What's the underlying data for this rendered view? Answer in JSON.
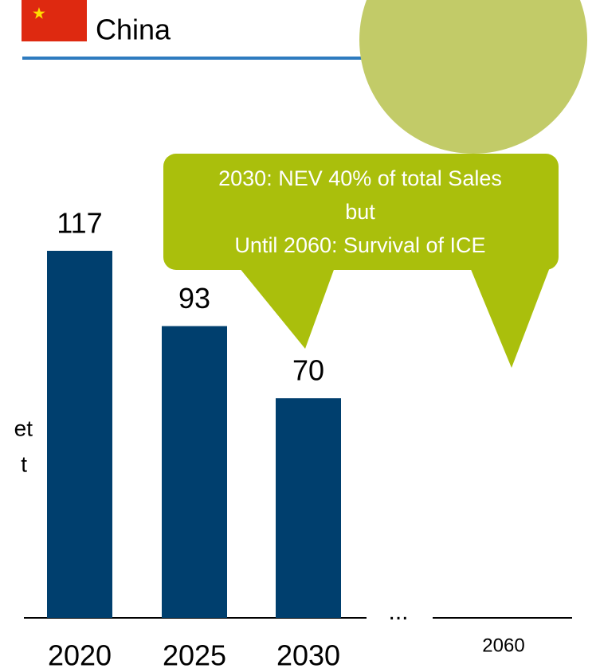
{
  "chart_data": {
    "type": "bar",
    "title": "China",
    "annotation": [
      "2030: NEV 40% of total Sales",
      "but",
      "Until 2060: Survival of ICE"
    ],
    "side_text": [
      "et",
      "t"
    ],
    "gap_label": "...",
    "categories": [
      "2020",
      "2025",
      "2030",
      "2060"
    ],
    "values": [
      117,
      93,
      70,
      null
    ],
    "color": "#003f6e"
  }
}
